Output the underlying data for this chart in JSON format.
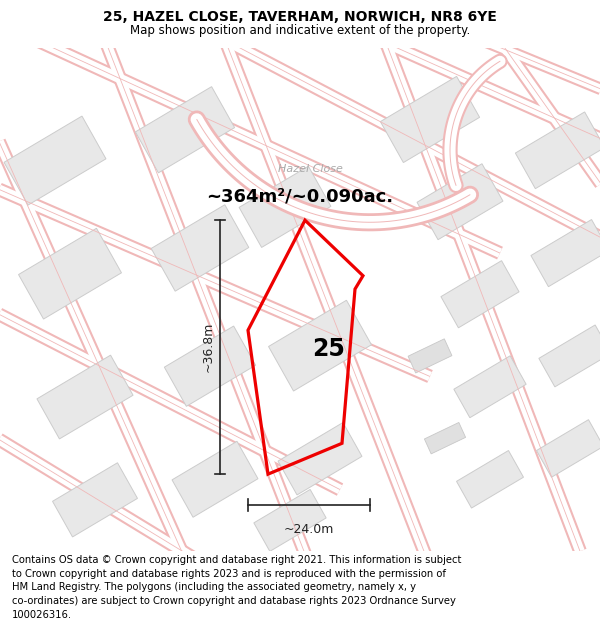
{
  "title_line1": "25, HAZEL CLOSE, TAVERHAM, NORWICH, NR8 6YE",
  "title_line2": "Map shows position and indicative extent of the property.",
  "area_text": "~364m²/~0.090ac.",
  "street_label": "Hazel Close",
  "plot_number": "25",
  "dim_height": "~36.8m",
  "dim_width": "~24.0m",
  "footer_lines": [
    "Contains OS data © Crown copyright and database right 2021. This information is subject",
    "to Crown copyright and database rights 2023 and is reproduced with the permission of",
    "HM Land Registry. The polygons (including the associated geometry, namely x, y",
    "co-ordinates) are subject to Crown copyright and database rights 2023 Ordnance Survey",
    "100026316."
  ],
  "map_bg": "#f7f5f5",
  "building_fc": "#e8e8e8",
  "building_ec": "#cccccc",
  "road_outline": "#f0b8b8",
  "plot_edge": "#ee0000",
  "dim_color": "#222222",
  "title_fontsize": 10,
  "subtitle_fontsize": 8.5,
  "area_fontsize": 13,
  "label_fontsize": 8,
  "plot_fontsize": 17,
  "dim_fontsize": 9,
  "footer_fontsize": 7.2
}
